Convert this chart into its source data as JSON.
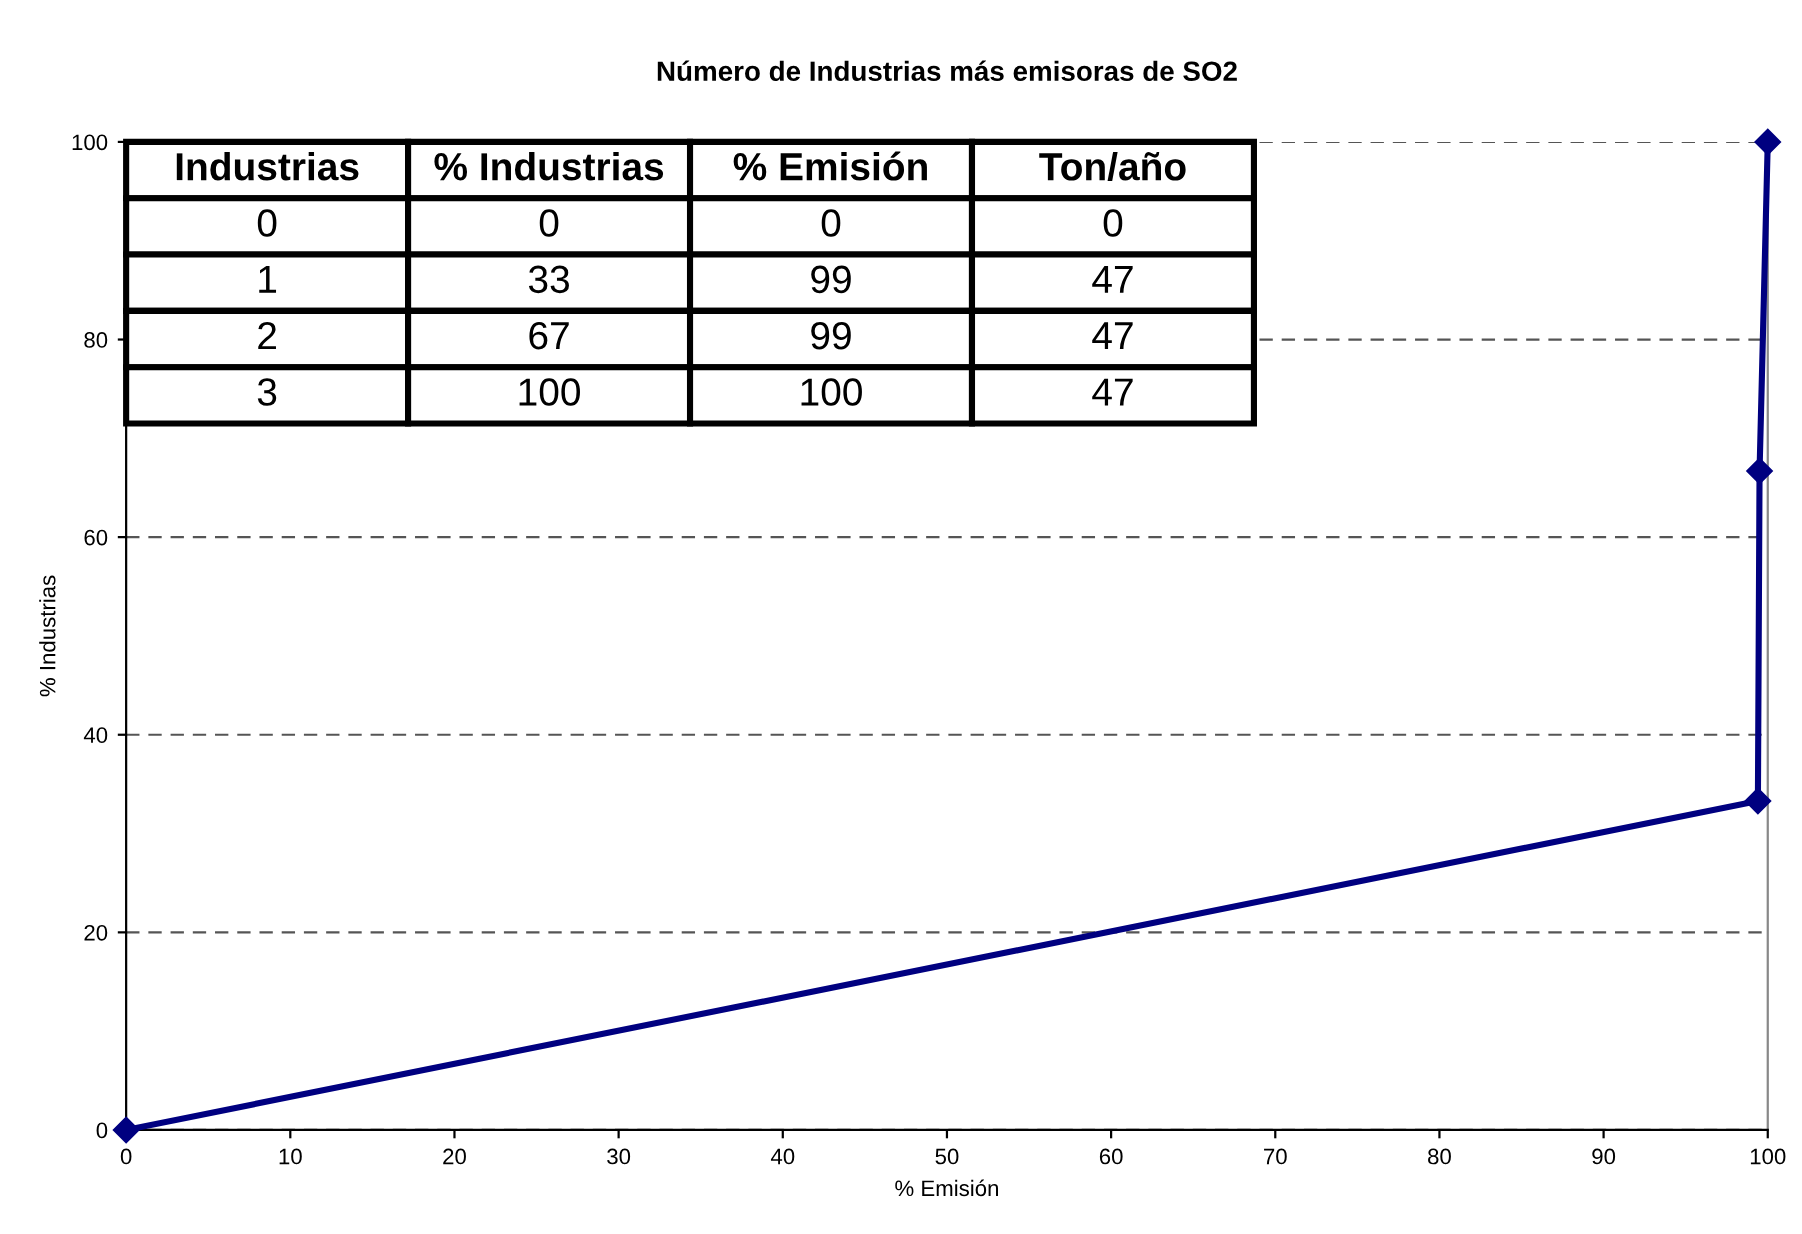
{
  "chart_data": {
    "type": "line",
    "title": "Número de Industrias más emisoras de SO2",
    "xlabel": "% Emisión",
    "ylabel": "% Industrias",
    "x": [
      0,
      99.4,
      99.5,
      100
    ],
    "series": [
      {
        "color": "#000080",
        "values": [
          0,
          33.3,
          66.7,
          100
        ]
      }
    ],
    "xlim": [
      0,
      100
    ],
    "xticks": [
      0,
      10,
      20,
      30,
      40,
      50,
      60,
      70,
      80,
      90,
      100
    ],
    "ylim": [
      0,
      100
    ],
    "yticks": [
      0,
      20,
      40,
      60,
      80,
      100
    ],
    "grid": "y",
    "marker": "diamond",
    "line_style": "solid",
    "legend": false,
    "annotations": [
      "Industrias",
      "% Industrias",
      "% Emisión",
      "Ton/año",
      "0",
      "0",
      "0",
      "0",
      "1",
      "33",
      "99",
      "47",
      "2",
      "67",
      "99",
      "47",
      "3",
      "100",
      "100",
      "47"
    ]
  }
}
